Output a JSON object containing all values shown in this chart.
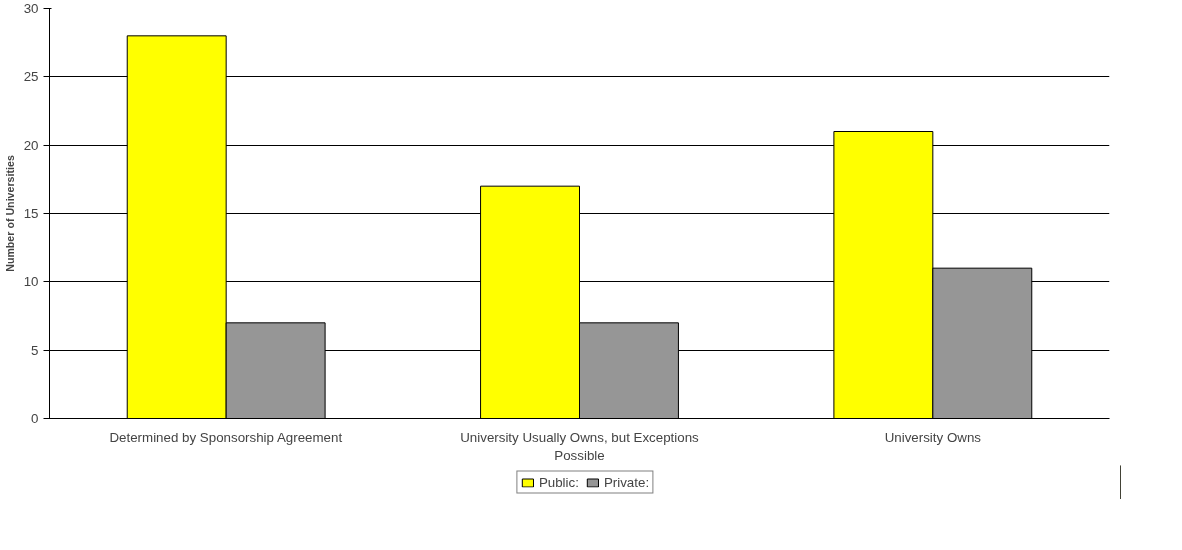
{
  "chart_data": {
    "type": "bar",
    "ylabel": "Number of Universities",
    "categories": [
      "Determined by Sponsorship Agreement",
      "University Usually Owns, but Exceptions Possible",
      "University Owns"
    ],
    "series": [
      {
        "name": "Public:",
        "color": "#ffff00",
        "values": [
          28,
          17,
          21
        ]
      },
      {
        "name": "Private:",
        "color": "#969696",
        "values": [
          7,
          7,
          11
        ]
      }
    ],
    "ylim": [
      0,
      30
    ],
    "yticks": [
      0,
      5,
      10,
      15,
      20,
      25,
      30
    ],
    "grid": "y",
    "legend": "bottom"
  }
}
